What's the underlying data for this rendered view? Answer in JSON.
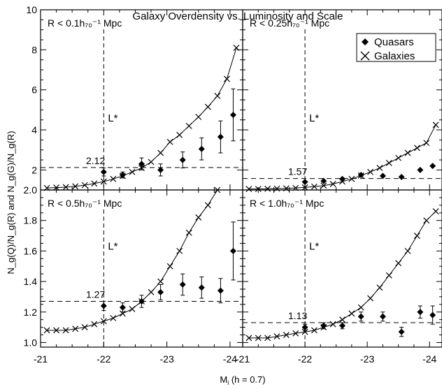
{
  "figure": {
    "title": "Galaxy Overdensity vs. Luminosity and Scale",
    "xlabel": "M",
    "xlabel_sub": "i",
    "xlabel_rest": " (h = 0.7)",
    "ylabel": "N_g(Q)/N_g(R) and N_g(G)/N_g(R)",
    "legend": {
      "quasars": "Quasars",
      "galaxies": "Galaxies"
    },
    "lstar_label": "L*"
  },
  "chart_data": [
    {
      "type": "scatter",
      "panel": "top-left",
      "label": "R < 0.1h₇₀⁻¹ Mpc",
      "xlim": [
        -21,
        -24.2
      ],
      "ylim": [
        1.0,
        10
      ],
      "yticks": [
        "2",
        "4",
        "6",
        "8",
        "10"
      ],
      "xticks": [],
      "lstar": -22,
      "hline": {
        "value": 2.12,
        "label": "2.12"
      },
      "galaxies": {
        "x": [
          -21.1,
          -21.25,
          -21.4,
          -21.55,
          -21.7,
          -21.85,
          -22.0,
          -22.15,
          -22.3,
          -22.45,
          -22.6,
          -22.75,
          -22.9,
          -23.05,
          -23.2,
          -23.35,
          -23.5,
          -23.65,
          -23.8,
          -23.95,
          -24.1
        ],
        "y": [
          1.1,
          1.12,
          1.14,
          1.18,
          1.24,
          1.32,
          1.42,
          1.55,
          1.7,
          1.9,
          2.1,
          2.4,
          2.85,
          3.4,
          3.75,
          4.2,
          4.65,
          5.15,
          5.7,
          6.55,
          8.1
        ]
      },
      "quasars": {
        "x": [
          -22.0,
          -22.3,
          -22.6,
          -22.9,
          -23.25,
          -23.55,
          -23.85,
          -24.05
        ],
        "y": [
          1.9,
          1.75,
          2.3,
          2.0,
          2.5,
          3.05,
          3.65,
          4.75
        ],
        "err": [
          0.2,
          0.15,
          0.3,
          0.3,
          0.4,
          0.55,
          0.8,
          1.3
        ]
      }
    },
    {
      "type": "scatter",
      "panel": "top-right",
      "label": "R < 0.25h₇₀⁻¹ Mpc",
      "xlim": [
        -21,
        -24.2
      ],
      "ylim": [
        1.0,
        10
      ],
      "yticks": [],
      "xticks": [],
      "lstar": -22,
      "hline": {
        "value": 1.57,
        "label": "1.57"
      },
      "galaxies": {
        "x": [
          -21.1,
          -21.25,
          -21.4,
          -21.55,
          -21.7,
          -21.85,
          -22.0,
          -22.15,
          -22.3,
          -22.45,
          -22.6,
          -22.75,
          -22.9,
          -23.05,
          -23.2,
          -23.35,
          -23.5,
          -23.65,
          -23.8,
          -23.95,
          -24.1
        ],
        "y": [
          1.05,
          1.05,
          1.06,
          1.07,
          1.08,
          1.1,
          1.13,
          1.17,
          1.22,
          1.3,
          1.42,
          1.55,
          1.72,
          1.9,
          2.1,
          2.35,
          2.6,
          2.85,
          3.1,
          3.35,
          4.25
        ]
      },
      "quasars": {
        "x": [
          -22.0,
          -22.3,
          -22.6,
          -22.9,
          -23.25,
          -23.55,
          -23.85,
          -24.05
        ],
        "y": [
          1.4,
          1.45,
          1.55,
          1.75,
          1.7,
          1.65,
          2.0,
          2.2
        ]
      }
    },
    {
      "type": "scatter",
      "panel": "bottom-left",
      "label": "R < 0.5h₇₀⁻¹ Mpc",
      "xlim": [
        -21,
        -24.2
      ],
      "ylim": [
        0.97,
        2.0
      ],
      "yticks": [
        "1.0",
        "1.2",
        "1.4",
        "1.6",
        "1.8",
        "2.0"
      ],
      "xticks": [
        "-21",
        "-22",
        "-23",
        "-24"
      ],
      "lstar": -22,
      "hline": {
        "value": 1.27,
        "label": "1.27"
      },
      "galaxies": {
        "x": [
          -21.1,
          -21.25,
          -21.4,
          -21.55,
          -21.7,
          -21.85,
          -22.0,
          -22.15,
          -22.3,
          -22.45,
          -22.6,
          -22.75,
          -22.9,
          -23.05,
          -23.2,
          -23.35,
          -23.5,
          -23.65,
          -23.8,
          -23.95,
          -24.1
        ],
        "y": [
          1.08,
          1.08,
          1.08,
          1.09,
          1.1,
          1.12,
          1.14,
          1.16,
          1.19,
          1.22,
          1.27,
          1.33,
          1.4,
          1.5,
          1.6,
          1.72,
          1.82,
          1.9,
          2.0,
          2.05,
          2.1
        ]
      },
      "quasars": {
        "x": [
          -22.0,
          -22.3,
          -22.6,
          -22.9,
          -23.25,
          -23.55,
          -23.85,
          -24.05
        ],
        "y": [
          1.24,
          1.23,
          1.27,
          1.33,
          1.38,
          1.36,
          1.34,
          1.6
        ],
        "err": [
          0.03,
          0.03,
          0.04,
          0.05,
          0.07,
          0.07,
          0.08,
          0.19
        ]
      }
    },
    {
      "type": "scatter",
      "panel": "bottom-right",
      "label": "R < 1.0h₇₀⁻¹ Mpc",
      "xlim": [
        -21,
        -24.2
      ],
      "ylim": [
        0.97,
        2.0
      ],
      "yticks": [],
      "xticks": [
        "-21",
        "-22",
        "-23",
        "-24"
      ],
      "lstar": -22,
      "hline": {
        "value": 1.13,
        "label": "1.13"
      },
      "galaxies": {
        "x": [
          -21.1,
          -21.25,
          -21.4,
          -21.55,
          -21.7,
          -21.85,
          -22.0,
          -22.15,
          -22.3,
          -22.45,
          -22.6,
          -22.75,
          -22.9,
          -23.05,
          -23.2,
          -23.35,
          -23.5,
          -23.65,
          -23.8,
          -23.95,
          -24.1
        ],
        "y": [
          1.03,
          1.03,
          1.03,
          1.04,
          1.05,
          1.06,
          1.07,
          1.08,
          1.1,
          1.12,
          1.15,
          1.19,
          1.23,
          1.29,
          1.36,
          1.44,
          1.52,
          1.6,
          1.7,
          1.8,
          1.86
        ]
      },
      "quasars": {
        "x": [
          -22.0,
          -22.3,
          -22.6,
          -22.9,
          -23.25,
          -23.55,
          -23.85,
          -24.05
        ],
        "y": [
          1.1,
          1.11,
          1.11,
          1.17,
          1.17,
          1.07,
          1.2,
          1.18
        ],
        "err": [
          0.02,
          0.02,
          0.02,
          0.03,
          0.03,
          0.03,
          0.04,
          0.06
        ]
      }
    }
  ]
}
